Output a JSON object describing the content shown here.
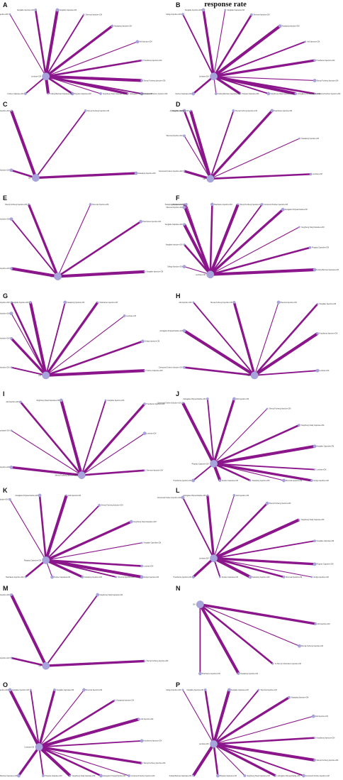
{
  "figure_header": "response rate",
  "colors": {
    "edge": "#8b168b",
    "node": "#a9a3dc",
    "node_stroke": "#8d87c9"
  },
  "panels": [
    {
      "label": "A",
      "hub": "Lentinan+CM",
      "nodes": [
        "Ginkgo Injection+CM",
        "Kanglaite Injection+CM",
        "Kanglaite Capsules+CM",
        "Shenmai Injection+CM",
        "Xiaoaiping Injection+CM",
        "Aidi Injection+CM",
        "Huachansu Injection+CM",
        "Shenqi Fuzheng Injection+CM",
        "Compound Kushen Injection+CM",
        "Astragalus Polysaccharide+CM",
        "Yangzheng Xiaoji Capsules+CM",
        "Pingxiao Capsules+CM",
        "Fufang Banmao Capsules+CM",
        "Kushen Capsules+CM"
      ]
    },
    {
      "label": "B",
      "hub": "Lentinan+CM",
      "nodes": [
        "Ginkgo Injection+CM",
        "Kanglaite Injection+CM",
        "Kanglaite Capsules+CM",
        "Shenmai Injection+CM",
        "Xiaoaiping Injection+CM",
        "Aidi Injection+CM",
        "Huachansu Injection+CM",
        "Shenqi Fuzheng Injection+CM",
        "Compound Kushen Injection+CM",
        "Astragalus Polysaccharide+CM",
        "Yangzheng Xiaoji Capsules+CM",
        "Pingxiao Capsules+CM",
        "Fufang Banmao Capsules+CM",
        "Kushen Capsules+CM"
      ]
    },
    {
      "label": "C",
      "hub": "CM",
      "nodes": [
        "Aidi Injection+CM",
        "Compound Kushen Injection+CM",
        "Shenqi Fuzheng Injection+CM",
        "Xiaoaiping Injection+CM"
      ]
    },
    {
      "label": "D",
      "hub": "CM",
      "nodes": [
        "Compound Kushen Injection+CM",
        "Shenmai Injection+CM",
        "Aidi Injection+CM",
        "Kanglaite Injection+CM",
        "Shenqi Fuzheng Injection+CM",
        "Huachansu Injection+CM",
        "Xiaoaiping Injection+CM",
        "Lentinan+CM"
      ]
    },
    {
      "label": "E",
      "hub": "CM",
      "nodes": [
        "Compound Kushen Injection+CM",
        "Aidi Injection+CM",
        "Shenqi Fuzheng Injection+CM",
        "Shenmai Injection+CM",
        "Huachansu Injection+CM",
        "Kanglaite Injection+CM"
      ]
    },
    {
      "label": "F",
      "hub": "Lentinan+CM",
      "nodes": [
        "Ginkgo Injection+CM",
        "Kanglaite Injection+CM",
        "Kanglaite Capsules+CM",
        "Shenmai Injection+CM",
        "Xiaoaiping Injection+CM",
        "Aidi Injection+CM",
        "Huachansu Injection+CM",
        "Shenqi Fuzheng Injection+CM",
        "Compound Kushen Injection+CM",
        "Astragalus Polysaccharide+CM",
        "Yangzheng Xiaoji Capsules+CM",
        "Pingxiao Capsules+CM",
        "Fufang Banmao Capsules+CM"
      ]
    },
    {
      "label": "G",
      "hub": "CM",
      "nodes": [
        "Compound Kushen Injection+CM",
        "Aidi Injection+CM",
        "Shenqi Fuzheng Injection+CM",
        "Shenmai Injection+CM",
        "Kanglaite Injection+CM",
        "Xiaoaiping Injection+CM",
        "Huachansu Injection+CM",
        "Lentinan+CM",
        "Ginkgo Injection+CM",
        "Kushen Capsules+CM"
      ]
    },
    {
      "label": "H",
      "hub": "CM",
      "nodes": [
        "Compound Kushen Injection+CM",
        "Astragalus Polysaccharide+CM",
        "Aidi Injection+CM",
        "Shenqi Fuzheng Injection+CM",
        "Shenmai Injection+CM",
        "Kanglaite Injection+CM",
        "Huachansu Injection+CM",
        "Lentinan+CM"
      ]
    },
    {
      "label": "I",
      "hub": "Shenqi Fuzheng Injection+CM",
      "nodes": [
        "Compound Kushen Injection+CM",
        "Astragalus Polysaccharide+CM",
        "Aidi Injection+CM",
        "Yangzheng Xiaoji Capsules+CM",
        "Kanglaite Injection+CM",
        "Huachansu Injection+CM",
        "Lentinan+CM",
        "Shenmai Injection+CM"
      ]
    },
    {
      "label": "J",
      "hub": "Pingxiao Capsules+CM",
      "nodes": [
        "Compound Kushen Injection+CM",
        "Astragalus Polysaccharide+CM",
        "Aidi Injection+CM",
        "Shenqi Fuzheng Injection+CM",
        "Yangzheng Xiaoji Capsules+CM",
        "Kanglaite Capsules+CM",
        "Lentinan+CM",
        "Ginkgo Injection+CM",
        "Shenmai Injection+CM",
        "Xiaoaiping Injection+CM",
        "Kushen Capsules+CM",
        "Huachansu Injection+CM"
      ]
    },
    {
      "label": "K",
      "hub": "Pingxiao Capsules+CM",
      "nodes": [
        "Compound Kushen Injection+CM",
        "Astragalus Polysaccharide+CM",
        "Aidi Injection+CM",
        "Shenqi Fuzheng Injection+CM",
        "Yangzheng Xiaoji Capsules+CM",
        "Kanglaite Capsules+CM",
        "Lentinan+CM",
        "Ginkgo Injection+CM",
        "Shenmai Injection+CM",
        "Xiaoaiping Injection+CM",
        "Kushen Capsules+CM",
        "Huachansu Injection+CM"
      ]
    },
    {
      "label": "L",
      "hub": "Lentinan+CM",
      "nodes": [
        "Compound Kushen Injection+CM",
        "Astragalus Polysaccharide+CM",
        "Aidi Injection+CM",
        "Shenqi Fuzheng Injection+CM",
        "Yangzheng Xiaoji Capsules+CM",
        "Kanglaite Capsules+CM",
        "Pingxiao Capsules+CM",
        "Ginkgo Injection+CM",
        "Shenmai Injection+CM",
        "Xiaoaiping Injection+CM",
        "Kushen Capsules+CM",
        "Huachansu Injection+CM"
      ]
    },
    {
      "label": "M",
      "hub": "CM",
      "nodes": [
        "Compound Kushen Injection+CM",
        "Aidi Injection+CM",
        "Yangzheng Xiaoji Capsules+CM",
        "Shenqi Fuzheng Injection+CM"
      ]
    },
    {
      "label": "N",
      "hub": "CM",
      "nodes": [
        "Aidi Injection+CM",
        "Shenqi Fuzheng Injection+CM",
        "Yu Xian Qi Ji Emulsion Injection+CM",
        "Xiaoaiping Injection+CM",
        "Huachansu Injection+CM"
      ]
    },
    {
      "label": "O",
      "hub": "Lentinan+CM",
      "nodes": [
        "Ginkgo Injection+CM",
        "Kanglaite Injection+CM",
        "Kanglaite Capsules+CM",
        "Shenmai Injection+CM",
        "Xiaoaiping Injection+CM",
        "Aidi Injection+CM",
        "Huachansu Injection+CM",
        "Shenqi Fuzheng Injection+CM",
        "Compound Kushen Injection+CM",
        "Astragalus Polysaccharide+CM",
        "Yangzheng Xiaoji Capsules+CM",
        "Pingxiao Capsules+CM",
        "Fufang Banmao Capsules+CM"
      ]
    },
    {
      "label": "P",
      "hub": "Lentinan+CM",
      "nodes": [
        "Ginkgo Injection+CM",
        "Kanglaite Injection+CM",
        "Kanglaite Capsules+CM",
        "Shenmai Injection+CM",
        "Xiaoaiping Injection+CM",
        "Aidi Injection+CM",
        "Huachansu Injection+CM",
        "Shenqi Fuzheng Injection+CM",
        "Compound Kushen Injection+CM",
        "Astragalus Polysaccharide+CM",
        "Yangzheng Xiaoji Capsules+CM",
        "Pingxiao Capsules+CM",
        "Fufang Banmao Capsules+CM"
      ]
    }
  ]
}
